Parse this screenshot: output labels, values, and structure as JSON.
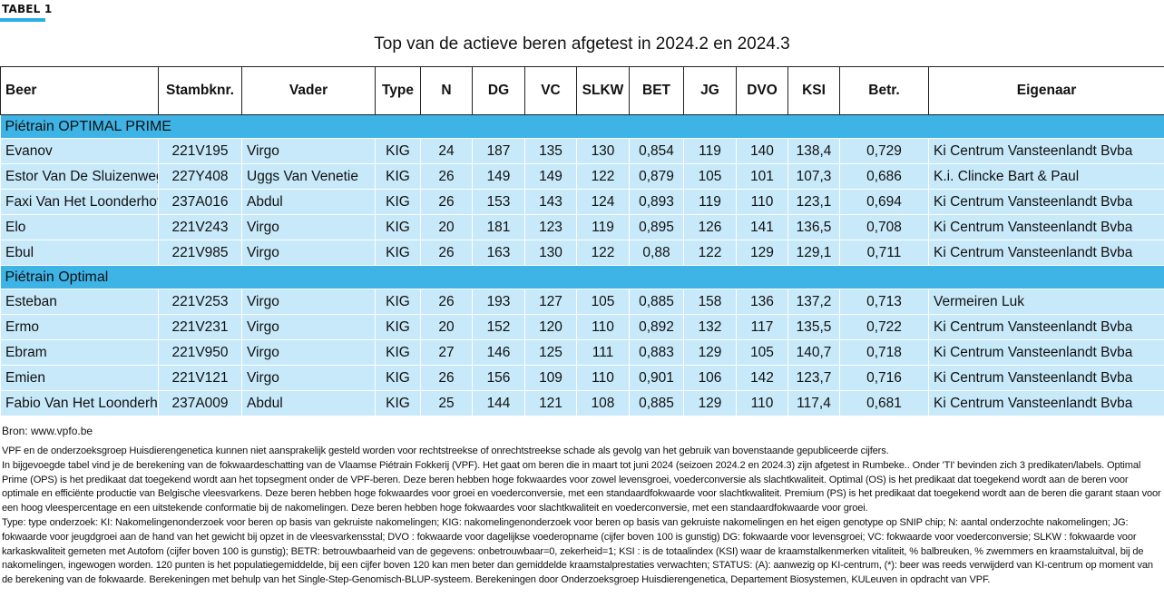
{
  "tag": "TABEL 1",
  "title": "Top van de actieve beren afgetest in 2024.2 en 2024.3",
  "columns": [
    "Beer",
    "Stambknr.",
    "Vader",
    "Type",
    "N",
    "DG",
    "VC",
    "SLKW",
    "BET",
    "JG",
    "DVO",
    "KSI",
    "Betr.",
    "Eigenaar"
  ],
  "sections": [
    {
      "label": "Piétrain OPTIMAL PRIME",
      "rows": [
        [
          "Evanov",
          "221V195",
          "Virgo",
          "KIG",
          "24",
          "187",
          "135",
          "130",
          "0,854",
          "119",
          "140",
          "138,4",
          "0,729",
          "Ki Centrum Vansteenlandt Bvba"
        ],
        [
          "Estor Van De Sluizenweg",
          "227Y408",
          "Uggs Van Venetie",
          "KIG",
          "26",
          "149",
          "149",
          "122",
          "0,879",
          "105",
          "101",
          "107,3",
          "0,686",
          "K.i. Clincke Bart & Paul"
        ],
        [
          "Faxi Van Het Loonderhof",
          "237A016",
          "Abdul",
          "KIG",
          "26",
          "153",
          "143",
          "124",
          "0,893",
          "119",
          "110",
          "123,1",
          "0,694",
          "Ki Centrum Vansteenlandt Bvba"
        ],
        [
          "Elo",
          "221V243",
          "Virgo",
          "KIG",
          "20",
          "181",
          "123",
          "119",
          "0,895",
          "126",
          "141",
          "136,5",
          "0,708",
          "Ki Centrum Vansteenlandt Bvba"
        ],
        [
          "Ebul",
          "221V985",
          "Virgo",
          "KIG",
          "26",
          "163",
          "130",
          "122",
          "0,88",
          "122",
          "129",
          "129,1",
          "0,711",
          "Ki Centrum Vansteenlandt Bvba"
        ]
      ]
    },
    {
      "label": "Piétrain Optimal",
      "rows": [
        [
          "Esteban",
          "221V253",
          "Virgo",
          "KIG",
          "26",
          "193",
          "127",
          "105",
          "0,885",
          "158",
          "136",
          "137,2",
          "0,713",
          "Vermeiren Luk"
        ],
        [
          "Ermo",
          "221V231",
          "Virgo",
          "KIG",
          "20",
          "152",
          "120",
          "110",
          "0,892",
          "132",
          "117",
          "135,5",
          "0,722",
          "Ki Centrum Vansteenlandt Bvba"
        ],
        [
          "Ebram",
          "221V950",
          "Virgo",
          "KIG",
          "27",
          "146",
          "125",
          "111",
          "0,883",
          "129",
          "105",
          "140,7",
          "0,718",
          "Ki Centrum Vansteenlandt Bvba"
        ],
        [
          "Emien",
          "221V121",
          "Virgo",
          "KIG",
          "26",
          "156",
          "109",
          "110",
          "0,901",
          "106",
          "142",
          "123,7",
          "0,716",
          "Ki Centrum Vansteenlandt Bvba"
        ],
        [
          "Fabio Van Het  Loonderhof",
          "237A009",
          "Abdul",
          "KIG",
          "25",
          "144",
          "121",
          "108",
          "0,885",
          "129",
          "110",
          "117,4",
          "0,681",
          "Ki Centrum Vansteenlandt Bvba"
        ]
      ]
    }
  ],
  "source": "Bron: www.vpfo.be",
  "notes": [
    "VPF en de onderzoeksgroep Huisdierengenetica kunnen niet aansprakelijk gesteld worden voor rechtstreekse of onrechtstreekse schade als gevolg van het gebruik van bovenstaande gepubliceerde cijfers.",
    "In bijgevoegde tabel vind je de berekening van de fokwaardeschatting van de Vlaamse Piétrain Fokkerij (VPF). Het gaat om beren die in maart tot juni 2024 (seizoen 2024.2 en 2024.3) zijn afgetest in Rumbeke.. Onder 'TI' bevinden zich 3 predikaten/labels. Optimal Prime (OPS) is het predikaat dat toegekend wordt aan het topsegment onder de VPF-beren. Deze beren hebben hoge fokwaardes voor zowel levensgroei, voederconversie als slachtkwaliteit. Optimal (OS) is het predikaat dat toegekend wordt aan de beren voor optimale en efficiënte productie van Belgische vleesvarkens. Deze beren hebben hoge fokwaardes voor groei en voederconversie, met een standaardfokwaarde voor slachtkwaliteit. Premium (PS) is het predikaat dat toegekend wordt aan de beren die garant staan voor een hoog vleespercentage en een uitstekende conformatie bij de nakomelingen. Deze beren hebben hoge fokwaardes voor slachtkwaliteit en voederconversie, met een standaardfokwaarde voor groei.",
    "Type: type onderzoek: KI: Nakomelingenonderzoek voor beren op basis van gekruiste nakomelingen; KIG: nakomelingenonderzoek voor beren op basis van gekruiste nakomelingen en het eigen genotype op SNIP chip; N: aantal onderzochte nakomelingen; JG: fokwaarde voor jeugdgroei aan de hand van het gewicht bij opzet in de vleesvarkensstal; DVO : fokwaarde voor dagelijkse voederopname (cijfer boven 100 is gunstig) DG: fokwaarde voor levensgroei; VC: fokwaarde voor voederconversie; SLKW : fokwaarde voor karkaskwaliteit gemeten met Autofom (cijfer boven 100 is gunstig);  BETR: betrouwbaarheid van de gegevens: onbetrouwbaar=0, zekerheid=1; KSI : is de totaalindex (KSI) waar de kraamstalkenmerken vitaliteit, % balbreuken, % zwemmers en kraamstaluitval, bij de nakomelingen, ingewogen worden. 120 punten is het populatiegemiddelde, bij een cijfer boven 120 kan men beter dan gemiddelde kraamstalprestaties verwachten; STATUS: (A): aanwezig op KI-centrum, (*): beer was reeds verwijderd van KI-centrum op moment van de berekening van de fokwaarde. Berekeningen met behulp van het Single-Step-Genomisch-BLUP-systeem. Berekeningen door Onderzoeksgroep Huisdierengenetica, Departement Biosystemen, KULeuven in opdracht van VPF."
  ]
}
